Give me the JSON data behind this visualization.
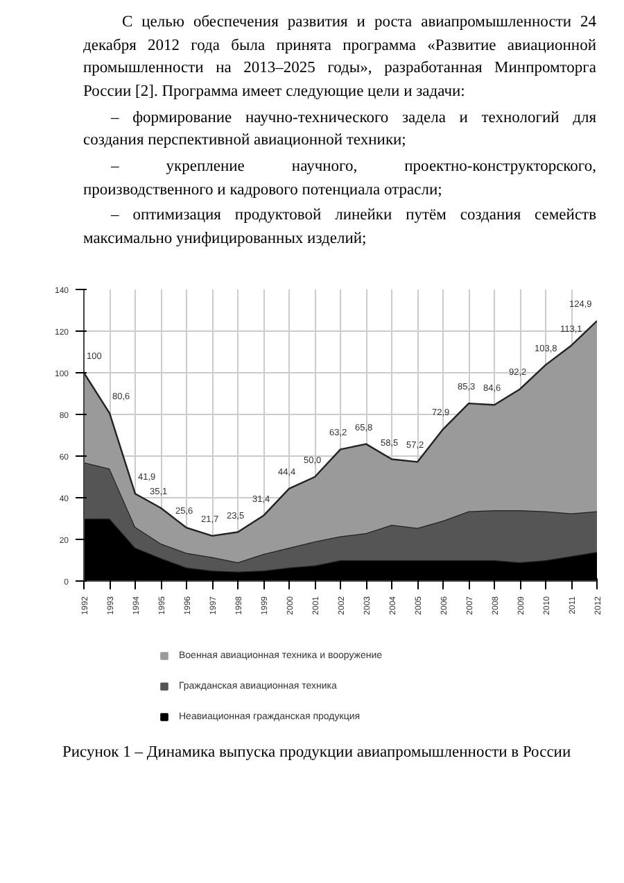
{
  "chart_data": {
    "type": "area",
    "stacked": true,
    "title": "Рисунок 1 – Динамика выпуска продукции авиапромышленности в России",
    "annotations": [
      "С целью обеспечения развития и роста авиапромышленности 24 декабря 2012 года была принята программа «Развитие авиационной промышленности на 2013–2025 годы», разработанная Минпромторга России [2]. Программа имеет следующие цели и задачи:",
      "– формирование научно-технического задела и технологий для создания перспективной авиационной техники;",
      "– укрепление научного, проектно-конструкторского, производственного и кадрового потенциала отрасли;",
      "– оптимизация продуктовой линейки путём создания семейств максимально унифицированных изделий;"
    ],
    "categories": [
      "1992",
      "1993",
      "1994",
      "1995",
      "1996",
      "1997",
      "1998",
      "1999",
      "2000",
      "2001",
      "2002",
      "2003",
      "2004",
      "2005",
      "2006",
      "2007",
      "2008",
      "2009",
      "2010",
      "2011",
      "2012"
    ],
    "series": [
      {
        "name": "Неавиационная гражданская продукция",
        "color": "#000000",
        "values": [
          30,
          30,
          16,
          11,
          6.5,
          5,
          4.5,
          5,
          6.5,
          7.5,
          10,
          10,
          10,
          10,
          10,
          10,
          10,
          9,
          10,
          12,
          14
        ]
      },
      {
        "name": "Гражданская авиационная техника",
        "color": "#555555",
        "values": [
          27,
          24,
          10,
          7,
          7,
          6.5,
          4.5,
          8,
          9.5,
          11.5,
          11.5,
          13,
          17,
          15.5,
          19,
          23.5,
          24,
          25,
          23.5,
          20.5,
          19.5
        ]
      },
      {
        "name": "Военная авиационная техника и вооружение",
        "color": "#9a9a9a",
        "values": [
          43,
          26.6,
          15.9,
          17.1,
          12.1,
          10.2,
          14.5,
          18.4,
          28.4,
          31,
          41.7,
          42.8,
          31.5,
          31.7,
          43.9,
          51.8,
          50.6,
          58.2,
          70.3,
          80.6,
          91.4
        ]
      }
    ],
    "totals": [
      "100",
      "80,6",
      "41,9",
      "35,1",
      "25,6",
      "21,7",
      "23,5",
      "31,4",
      "44,4",
      "50,0",
      "63,2",
      "65,8",
      "58,5",
      "57,2",
      "72,9",
      "85,3",
      "84,6",
      "92,2",
      "103,8",
      "113,1",
      "124,9"
    ],
    "ylim": [
      0,
      140
    ],
    "yticks": [
      0,
      20,
      40,
      60,
      80,
      100,
      120,
      140
    ],
    "grid": true,
    "legend": "bottom"
  }
}
